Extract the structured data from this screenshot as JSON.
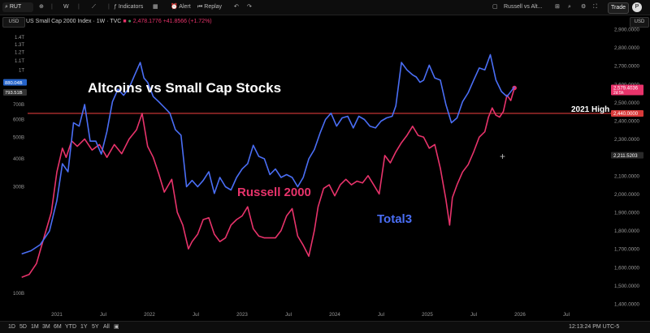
{
  "toolbar": {
    "symbol": "RUT",
    "interval": "W",
    "indicators_label": "Indicators",
    "alert_label": "Alert",
    "replay_label": "Replay",
    "layout_name": "Russell vs Alt...",
    "trade_label": "Trade",
    "avatar_letter": "P"
  },
  "legend": {
    "name": "US Small Cap 2000 Index · 1W · TVC",
    "price": "2,478.1776",
    "change": "+41.8566 (+1.72%)",
    "currency_left": "USD",
    "currency_right": "USD"
  },
  "bottombar": {
    "ranges": [
      "1D",
      "5D",
      "1M",
      "3M",
      "6M",
      "YTD",
      "1Y",
      "5Y",
      "All"
    ],
    "clock": "12:13:24 PM UTC-5",
    "logo": "TV"
  },
  "colors": {
    "russell": "#e8336b",
    "total3": "#4a6ef5",
    "hline": "#d83a3a",
    "bg": "#000000"
  },
  "chart_data": {
    "type": "line",
    "title": "Altcoins vs Small Cap Stocks",
    "annotations": {
      "russell_label": "Russell 2000",
      "total3_label": "Total3",
      "high_label": "2021 High"
    },
    "x_ticks": [
      "2021",
      "Jul",
      "2022",
      "Jul",
      "2023",
      "Jul",
      "2024",
      "Jul",
      "2025",
      "Jul",
      "2026",
      "Jul"
    ],
    "x_range": [
      2020.5,
      2026.9
    ],
    "right_axis": {
      "ticks": [
        "2,900.0000",
        "2,800.0000",
        "2,700.0000",
        "2,600.0000",
        "2,500.0000",
        "2,400.0000",
        "2,300.0000",
        "2,100.0000",
        "2,000.0000",
        "1,900.0000",
        "1,800.0000",
        "1,700.0000",
        "1,600.0000",
        "1,500.0000",
        "1,400.0000"
      ],
      "tick_values": [
        2900,
        2800,
        2700,
        2600,
        2500,
        2400,
        2300,
        2100,
        2000,
        1900,
        1800,
        1700,
        1600,
        1500,
        1400
      ],
      "ylim": [
        1380,
        2960
      ],
      "price_tags": [
        {
          "value": 2579.4036,
          "label": "2,579.4036",
          "sub": "2d 5h",
          "color": "#e8336b"
        },
        {
          "value": 2440,
          "label": "2,440.0000",
          "color": "#d83a3a"
        },
        {
          "value": 2211.5203,
          "label": "2,211.5203",
          "color": "#2a2a2a"
        }
      ]
    },
    "left_axis": {
      "ticks": [
        "1.4T",
        "1.3T",
        "1.2T",
        "1.1T",
        "1T",
        "793.51B",
        "700B",
        "600B",
        "500B",
        "400B",
        "300B",
        "100B"
      ],
      "tick_values": [
        1400,
        1300,
        1200,
        1100,
        1000,
        793.51,
        700,
        600,
        500,
        400,
        300,
        100
      ],
      "scale_note": "values in billions",
      "price_tags": [
        {
          "value": 880.04,
          "label": "880.04B",
          "color": "#2563c9"
        },
        {
          "value": 793.51,
          "label": "793.51B",
          "color": "#333333"
        }
      ]
    },
    "series": [
      {
        "name": "Russell 2000",
        "axis": "right",
        "x": [
          2020.62,
          2020.7,
          2020.78,
          2020.86,
          2020.94,
          2021.0,
          2021.06,
          2021.1,
          2021.16,
          2021.22,
          2021.3,
          2021.38,
          2021.46,
          2021.54,
          2021.62,
          2021.7,
          2021.78,
          2021.86,
          2021.92,
          2021.98,
          2022.04,
          2022.1,
          2022.16,
          2022.24,
          2022.3,
          2022.36,
          2022.42,
          2022.46,
          2022.52,
          2022.58,
          2022.64,
          2022.7,
          2022.76,
          2022.82,
          2022.88,
          2022.94,
          2023.0,
          2023.06,
          2023.12,
          2023.18,
          2023.24,
          2023.3,
          2023.36,
          2023.42,
          2023.48,
          2023.54,
          2023.6,
          2023.66,
          2023.72,
          2023.78,
          2023.82,
          2023.88,
          2023.94,
          2024.0,
          2024.06,
          2024.12,
          2024.18,
          2024.24,
          2024.3,
          2024.36,
          2024.42,
          2024.48,
          2024.54,
          2024.6,
          2024.66,
          2024.72,
          2024.78,
          2024.84,
          2024.9,
          2024.96,
          2025.02,
          2025.08,
          2025.14,
          2025.2,
          2025.24,
          2025.27,
          2025.32,
          2025.38,
          2025.44,
          2025.5,
          2025.56,
          2025.62,
          2025.66,
          2025.7,
          2025.74,
          2025.78,
          2025.82,
          2025.86,
          2025.9,
          2025.94
        ],
        "values": [
          1545,
          1560,
          1620,
          1760,
          1900,
          2120,
          2250,
          2200,
          2290,
          2260,
          2300,
          2240,
          2270,
          2200,
          2270,
          2220,
          2300,
          2350,
          2440,
          2260,
          2200,
          2110,
          2010,
          2080,
          1900,
          1830,
          1700,
          1740,
          1780,
          1860,
          1870,
          1780,
          1740,
          1760,
          1830,
          1860,
          1880,
          1930,
          1810,
          1770,
          1760,
          1760,
          1760,
          1800,
          1880,
          1920,
          1770,
          1720,
          1660,
          1800,
          1930,
          2030,
          2050,
          1990,
          2050,
          2080,
          2050,
          2070,
          2060,
          2100,
          2050,
          2000,
          2210,
          2170,
          2230,
          2280,
          2320,
          2370,
          2320,
          2310,
          2250,
          2270,
          2140,
          1970,
          1830,
          1980,
          2050,
          2120,
          2160,
          2230,
          2310,
          2340,
          2420,
          2470,
          2430,
          2420,
          2450,
          2540,
          2510,
          2579
        ]
      },
      {
        "name": "Total3",
        "axis": "left",
        "x": [
          2020.62,
          2020.72,
          2020.82,
          2020.92,
          2021.0,
          2021.06,
          2021.12,
          2021.18,
          2021.24,
          2021.3,
          2021.36,
          2021.42,
          2021.48,
          2021.54,
          2021.6,
          2021.66,
          2021.72,
          2021.78,
          2021.84,
          2021.9,
          2021.94,
          2021.98,
          2022.04,
          2022.1,
          2022.16,
          2022.22,
          2022.28,
          2022.34,
          2022.4,
          2022.46,
          2022.52,
          2022.58,
          2022.64,
          2022.7,
          2022.76,
          2022.82,
          2022.88,
          2022.94,
          2023.0,
          2023.06,
          2023.12,
          2023.18,
          2023.24,
          2023.3,
          2023.36,
          2023.42,
          2023.48,
          2023.54,
          2023.6,
          2023.66,
          2023.72,
          2023.78,
          2023.84,
          2023.9,
          2023.96,
          2024.02,
          2024.08,
          2024.14,
          2024.2,
          2024.26,
          2024.32,
          2024.38,
          2024.44,
          2024.5,
          2024.56,
          2024.62,
          2024.66,
          2024.72,
          2024.78,
          2024.84,
          2024.88,
          2024.92,
          2024.96,
          2025.02,
          2025.08,
          2025.14,
          2025.2,
          2025.26,
          2025.32,
          2025.38,
          2025.44,
          2025.5,
          2025.56,
          2025.62,
          2025.68,
          2025.74,
          2025.8,
          2025.86,
          2025.94
        ],
        "values": [
          150,
          155,
          165,
          190,
          260,
          380,
          350,
          580,
          560,
          700,
          480,
          480,
          420,
          530,
          720,
          820,
          770,
          830,
          950,
          1080,
          920,
          880,
          760,
          720,
          680,
          640,
          540,
          510,
          300,
          320,
          300,
          320,
          350,
          280,
          330,
          300,
          290,
          330,
          360,
          380,
          460,
          410,
          400,
          340,
          360,
          330,
          340,
          330,
          300,
          330,
          400,
          440,
          520,
          600,
          640,
          560,
          610,
          620,
          550,
          620,
          600,
          560,
          550,
          590,
          610,
          620,
          690,
          1080,
          1000,
          950,
          930,
          880,
          900,
          1050,
          920,
          900,
          700,
          580,
          610,
          720,
          790,
          900,
          1020,
          1000,
          1170,
          900,
          800,
          760,
          840
        ]
      }
    ]
  }
}
